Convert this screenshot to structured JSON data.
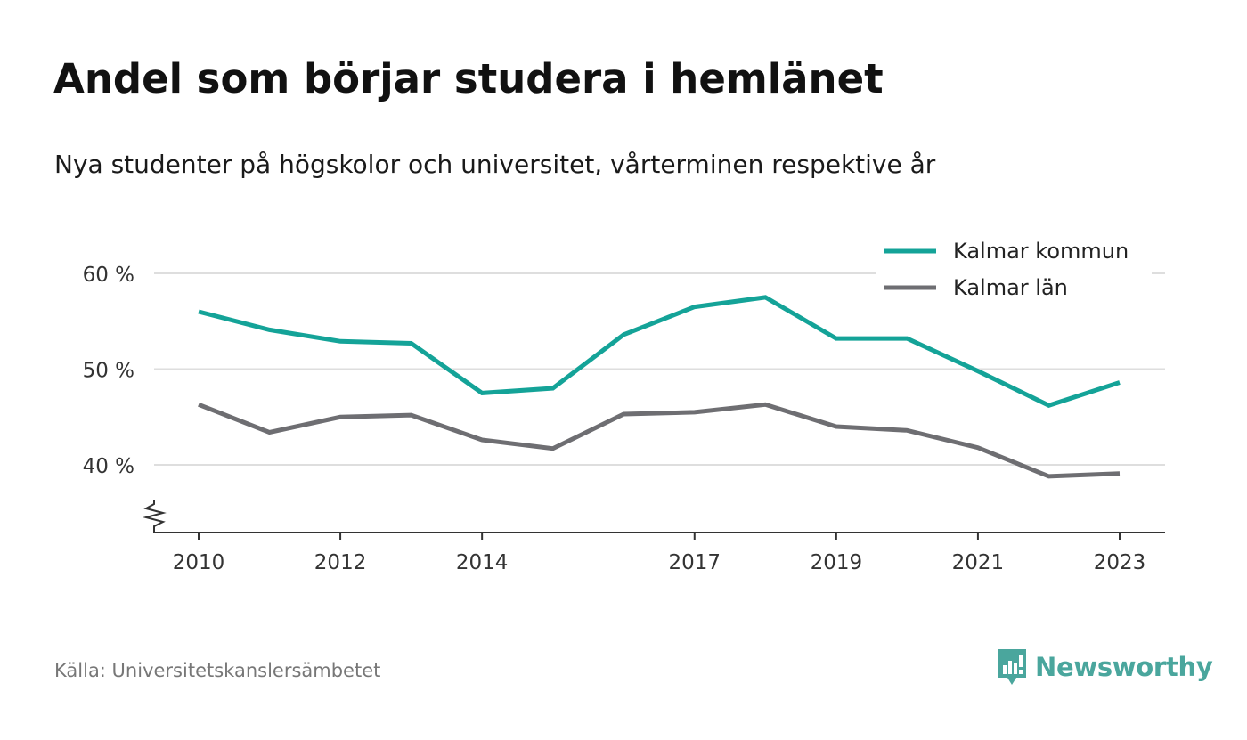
{
  "colors": {
    "series_1": "#14a398",
    "series_2": "#6e6e72",
    "grid": "#dedede",
    "axis": "#333333",
    "brand": "#4aa69d"
  },
  "source": "Källa: Universitetskanslersämbetet",
  "brand": {
    "name": "Newsworthy",
    "icon": "newsworthy-logo-icon"
  },
  "chart_data": {
    "type": "line",
    "title": "Andel som börjar studera i hemlänet",
    "subtitle": "Nya studenter på högskolor och universitet, vårterminen respektive år",
    "xlabel": "",
    "ylabel": "",
    "x": [
      2010,
      2011,
      2012,
      2013,
      2014,
      2015,
      2016,
      2017,
      2018,
      2019,
      2020,
      2021,
      2022,
      2023
    ],
    "x_ticks": [
      "2010",
      "2012",
      "2014",
      "2017",
      "2019",
      "2021",
      "2023"
    ],
    "y_ticks": [
      {
        "value": 40,
        "label": "40 %"
      },
      {
        "value": 50,
        "label": "50 %"
      },
      {
        "value": 60,
        "label": "60 %"
      }
    ],
    "ylim": [
      33,
      63
    ],
    "y_axis_break": true,
    "grid": true,
    "legend_position": "top-right",
    "series": [
      {
        "name": "Kalmar kommun",
        "values": [
          56.0,
          54.1,
          52.9,
          52.7,
          47.5,
          48.0,
          53.6,
          56.5,
          57.5,
          53.2,
          53.2,
          49.8,
          46.2,
          48.6
        ]
      },
      {
        "name": "Kalmar län",
        "values": [
          46.3,
          43.4,
          45.0,
          45.2,
          42.6,
          41.7,
          45.3,
          45.5,
          46.3,
          44.0,
          43.6,
          41.8,
          38.8,
          39.1
        ]
      }
    ]
  }
}
